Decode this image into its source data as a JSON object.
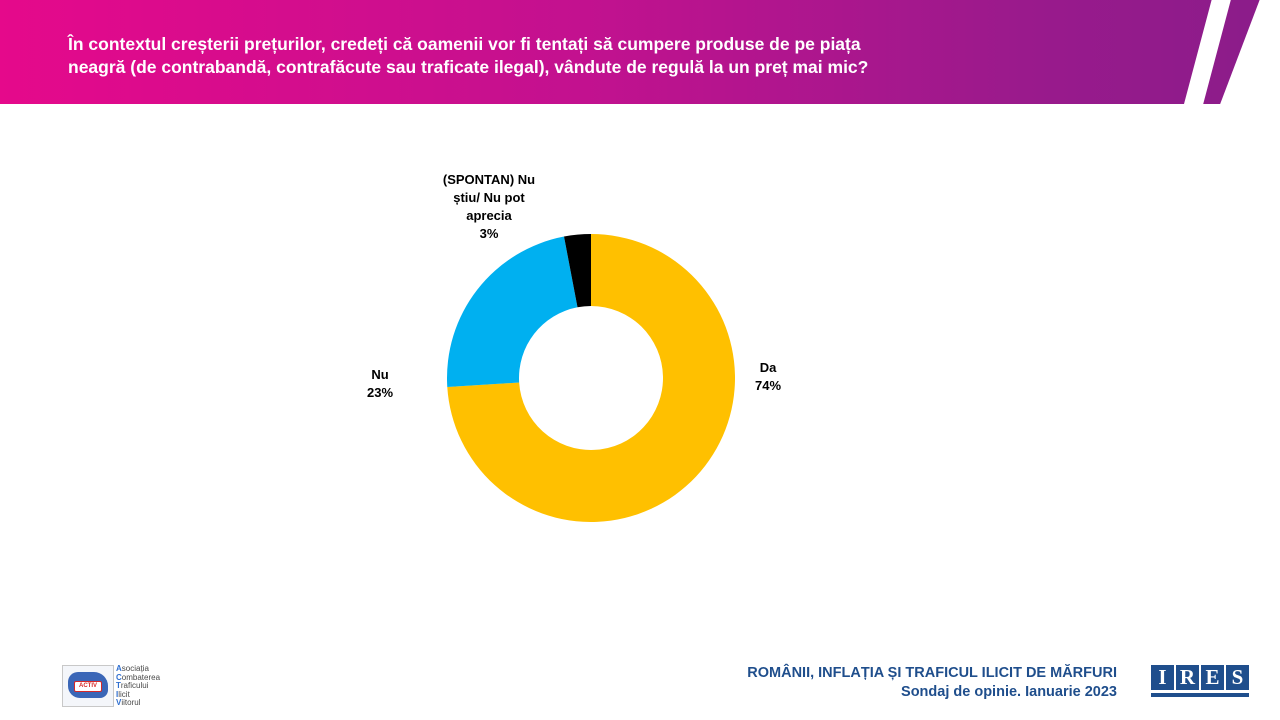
{
  "header": {
    "question_line1": "În contextul creșterii prețurilor, credeți că oamenii vor fi tentați să cumpere produse de pe piața",
    "question_line2": "neagră (de contrabandă, contrafăcute sau traficate ilegal), vândute de regulă la un preț mai mic?"
  },
  "chart_data": {
    "type": "pie",
    "donut": true,
    "title": "",
    "series": [
      {
        "values": [
          74,
          23,
          3
        ],
        "categories": [
          "Da",
          "Nu",
          "(SPONTAN) Nu știu/ Nu pot aprecia"
        ],
        "colors": [
          "#ffc000",
          "#00b0f0",
          "#000000"
        ]
      }
    ],
    "labels": [
      {
        "lines": [
          "Da",
          "74%"
        ]
      },
      {
        "lines": [
          "Nu",
          "23%"
        ]
      },
      {
        "lines": [
          "(SPONTAN) Nu",
          "știu/ Nu pot",
          "aprecia",
          "3%"
        ]
      }
    ],
    "legend": "none"
  },
  "footer": {
    "title_line1": "ROMÂNII, INFLAȚIA ȘI TRAFICUL ILICIT DE MĂRFURI",
    "title_line2": "Sondaj de opinie. Ianuarie 2023"
  },
  "logos": {
    "ires_letters": [
      "I",
      "R",
      "E",
      "S"
    ],
    "activ_badge": "ACTIV",
    "activ_lines": [
      {
        "initial": "A",
        "rest": "sociația"
      },
      {
        "initial": "C",
        "rest": "ombaterea"
      },
      {
        "initial": "T",
        "rest": "raficului"
      },
      {
        "initial": "I",
        "rest": "licit"
      },
      {
        "initial": "V",
        "rest": "iitorul"
      }
    ]
  }
}
